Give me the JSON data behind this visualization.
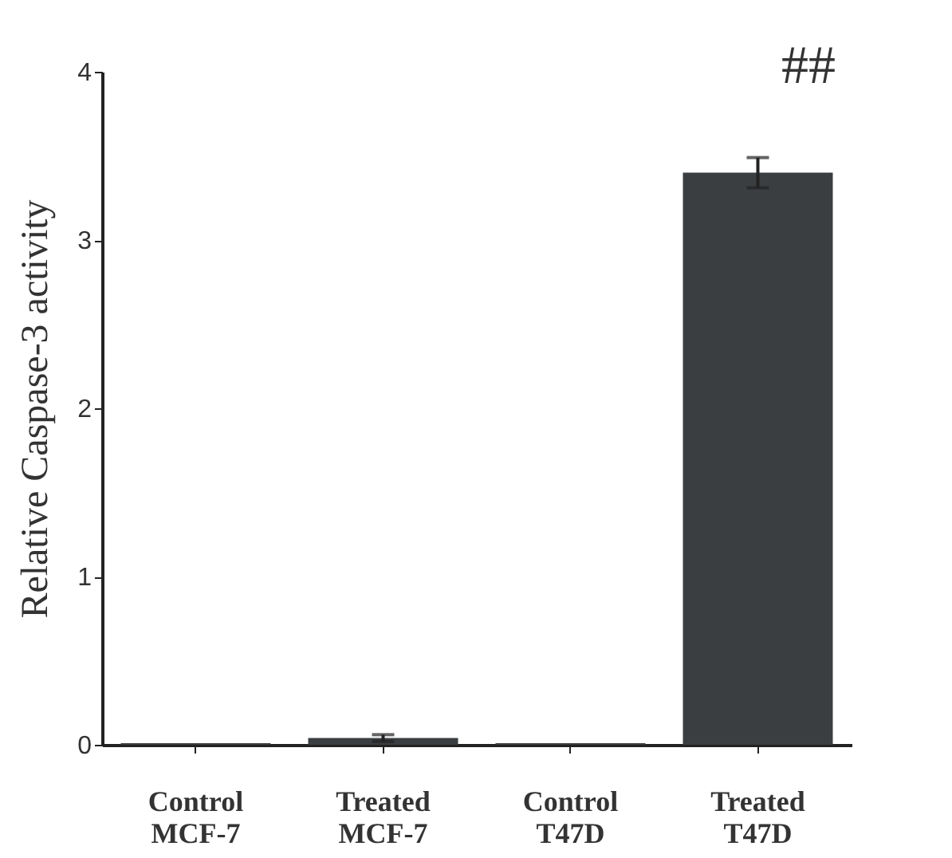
{
  "chart_data": {
    "type": "bar",
    "ylabel": "Relative Caspase-3 activity",
    "categories": [
      "Control\nMCF-7",
      "Treated\nMCF-7",
      "Control\nT47D",
      "Treated\nT47D"
    ],
    "values": [
      0.01,
      0.04,
      0.01,
      3.4
    ],
    "errors": [
      null,
      0.02,
      null,
      0.09
    ],
    "color": "#3b3e41",
    "ylim": [
      0,
      4
    ],
    "yticks": [
      0,
      1,
      2,
      3,
      4
    ],
    "grid": false,
    "annotations": [
      "##"
    ]
  }
}
